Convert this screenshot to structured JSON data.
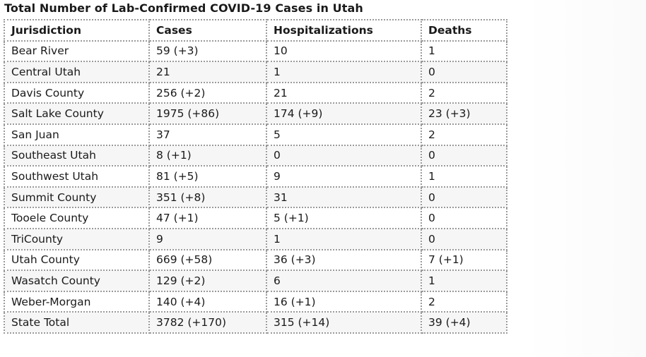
{
  "title": "Total Number of Lab-Confirmed COVID-19 Cases in Utah",
  "table": {
    "headers": [
      "Jurisdiction",
      "Cases",
      "Hospitalizations",
      "Deaths"
    ],
    "rows": [
      [
        "Bear River",
        "59 (+3)",
        "10",
        "1"
      ],
      [
        "Central Utah",
        "21",
        "1",
        "0"
      ],
      [
        "Davis County",
        "256 (+2)",
        "21",
        "2"
      ],
      [
        "Salt Lake County",
        "1975 (+86)",
        "174 (+9)",
        "23 (+3)"
      ],
      [
        "San Juan",
        "37",
        "5",
        "2"
      ],
      [
        "Southeast Utah",
        "8 (+1)",
        "0",
        "0"
      ],
      [
        "Southwest Utah",
        "81 (+5)",
        "9",
        "1"
      ],
      [
        "Summit County",
        "351 (+8)",
        "31",
        "0"
      ],
      [
        "Tooele County",
        "47 (+1)",
        "5 (+1)",
        "0"
      ],
      [
        "TriCounty",
        "9",
        "1",
        "0"
      ],
      [
        "Utah County",
        "669 (+58)",
        "36 (+3)",
        "7 (+1)"
      ],
      [
        "Wasatch County",
        "129 (+2)",
        "6",
        "1"
      ],
      [
        "Weber-Morgan",
        "140 (+4)",
        "16 (+1)",
        "2"
      ],
      [
        "State Total",
        "3782 (+170)",
        "315 (+14)",
        "39 (+4)"
      ]
    ]
  }
}
